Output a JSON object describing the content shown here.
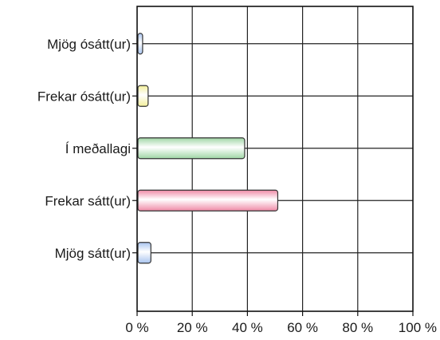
{
  "chart_data": {
    "type": "bar",
    "orientation": "horizontal",
    "categories": [
      "Mjög ósátt(ur)",
      "Frekar ósátt(ur)",
      "Í meðallagi",
      "Frekar sátt(ur)",
      "Mjög sátt(ur)"
    ],
    "values": [
      2,
      4,
      39,
      51,
      5
    ],
    "colors": [
      "#a9c4ef",
      "#f3ef9a",
      "#9fd6a5",
      "#ef8aa6",
      "#a9c4ef"
    ],
    "xlim": [
      0,
      100
    ],
    "xticks": [
      0,
      20,
      40,
      60,
      80,
      100
    ],
    "xtick_labels": [
      "0 %",
      "20 %",
      "40 %",
      "60 %",
      "80 %",
      "100 %"
    ],
    "grid": true,
    "legend": "none",
    "title": "",
    "xlabel": "",
    "ylabel": ""
  }
}
